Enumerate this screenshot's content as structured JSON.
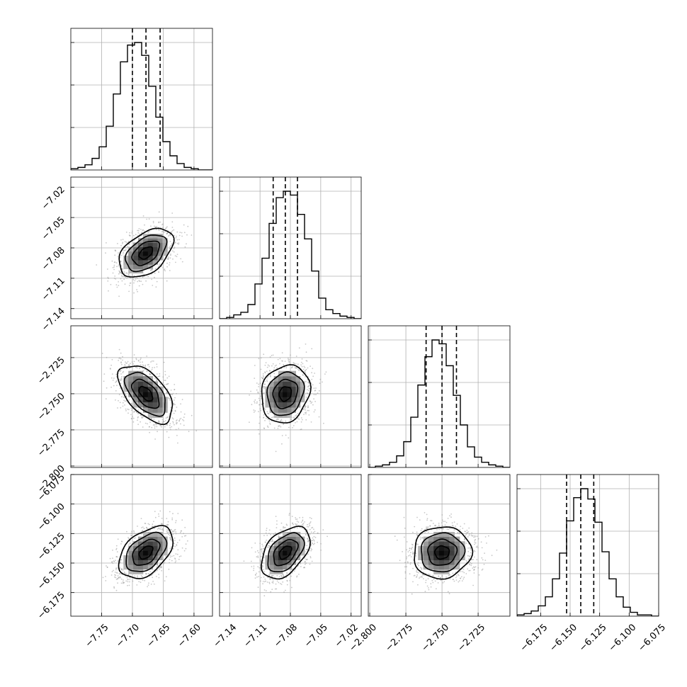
{
  "chart_data": {
    "type": "corner",
    "parameters": [
      {
        "range": [
          -7.8,
          -7.57
        ],
        "ticks": [
          -7.75,
          -7.7,
          -7.65,
          -7.6
        ],
        "tick_labels": [
          "−7.75",
          "−7.70",
          "−7.65",
          "−7.60"
        ],
        "quantiles": [
          -7.7,
          -7.678,
          -7.655
        ],
        "mean": -7.678,
        "sd": 0.022,
        "hist_counts": [
          1,
          2,
          4,
          9,
          18,
          34,
          59,
          84,
          97,
          99,
          89,
          65,
          41,
          22,
          11,
          5,
          2,
          1,
          0,
          0
        ]
      },
      {
        "range": [
          -7.15,
          -7.01
        ],
        "ticks": [
          -7.14,
          -7.11,
          -7.08,
          -7.05,
          -7.02
        ],
        "tick_labels": [
          "−7.14",
          "−7.11",
          "−7.08",
          "−7.05",
          "−7.02"
        ],
        "quantiles": [
          -7.097,
          -7.085,
          -7.073
        ],
        "mean": -7.085,
        "sd": 0.012,
        "hist_counts": [
          0,
          1,
          3,
          5,
          11,
          27,
          47,
          74,
          94,
          99,
          96,
          81,
          62,
          37,
          16,
          7,
          4,
          2,
          1,
          0
        ]
      },
      {
        "range": [
          -2.801,
          -2.703
        ],
        "ticks": [
          -2.8,
          -2.775,
          -2.75,
          -2.725
        ],
        "tick_labels": [
          "−2.800",
          "−2.775",
          "−2.750",
          "−2.725"
        ],
        "quantiles": [
          -2.761,
          -2.75,
          -2.74
        ],
        "mean": -2.75,
        "sd": 0.01,
        "hist_counts": [
          0,
          1,
          2,
          4,
          9,
          20,
          39,
          64,
          86,
          99,
          96,
          79,
          56,
          33,
          16,
          8,
          4,
          2,
          1,
          0
        ]
      },
      {
        "range": [
          -6.195,
          -6.075
        ],
        "ticks": [
          -6.175,
          -6.15,
          -6.125,
          -6.1,
          -6.075
        ],
        "tick_labels": [
          "−6.175",
          "−6.150",
          "−6.125",
          "−6.100",
          "−6.075"
        ],
        "quantiles": [
          -6.153,
          -6.141,
          -6.13
        ],
        "mean": -6.141,
        "sd": 0.011,
        "hist_counts": [
          1,
          2,
          4,
          8,
          15,
          29,
          49,
          74,
          92,
          99,
          91,
          73,
          50,
          29,
          15,
          7,
          3,
          1,
          1,
          0
        ]
      }
    ],
    "correlations": {
      "1-0": 0.45,
      "2-0": -0.55,
      "2-1": 0.15,
      "3-0": 0.45,
      "3-1": 0.45,
      "3-2": 0.05
    },
    "contour_levels_sigma": [
      0.5,
      1.0,
      1.5,
      2.0
    ],
    "grid": true
  }
}
